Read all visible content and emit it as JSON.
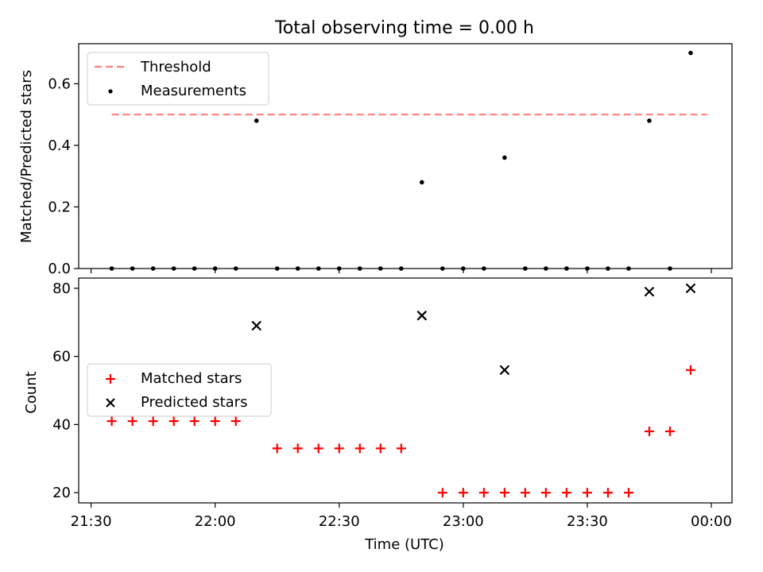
{
  "chart_data": [
    {
      "type": "scatter",
      "title": "Total observing time = 0.00 h",
      "xlabel": "",
      "ylabel": "Matched/Predicted stars",
      "xlim": [
        "21:27",
        "00:05"
      ],
      "ylim": [
        0,
        0.73
      ],
      "yticks": [
        "0.0",
        "0.2",
        "0.4",
        "0.6"
      ],
      "legend": {
        "placement": "top-left",
        "entries": [
          {
            "label": "Threshold",
            "marker": "dashed-line",
            "color": "#ff7f7f"
          },
          {
            "label": "Measurements",
            "marker": "dot",
            "color": "#000000"
          }
        ]
      },
      "threshold": {
        "value": 0.5,
        "x_start": "21:35",
        "x_end": "23:59"
      },
      "series": [
        {
          "name": "Measurements",
          "x": [
            "21:35",
            "21:40",
            "21:45",
            "21:50",
            "21:55",
            "22:00",
            "22:05",
            "22:10",
            "22:15",
            "22:20",
            "22:25",
            "22:30",
            "22:35",
            "22:40",
            "22:45",
            "22:50",
            "22:55",
            "23:00",
            "23:05",
            "23:10",
            "23:15",
            "23:20",
            "23:25",
            "23:30",
            "23:35",
            "23:40",
            "23:45",
            "23:50",
            "23:55"
          ],
          "y": [
            0,
            0,
            0,
            0,
            0,
            0,
            0,
            0.48,
            0,
            0,
            0,
            0,
            0,
            0,
            0,
            0.28,
            0,
            0,
            0,
            0.36,
            0,
            0,
            0,
            0,
            0,
            0,
            0.48,
            0,
            0.7
          ]
        }
      ]
    },
    {
      "type": "scatter",
      "title": "",
      "xlabel": "Time (UTC)",
      "ylabel": "Count",
      "xlim": [
        "21:27",
        "00:05"
      ],
      "ylim": [
        17,
        83
      ],
      "xticks": [
        "21:30",
        "22:00",
        "22:30",
        "23:00",
        "23:30",
        "00:00"
      ],
      "yticks": [
        "20",
        "40",
        "60",
        "80"
      ],
      "legend": {
        "placement": "center-left",
        "entries": [
          {
            "label": "Matched stars",
            "marker": "plus",
            "color": "#ff0000"
          },
          {
            "label": "Predicted stars",
            "marker": "x",
            "color": "#000000"
          }
        ]
      },
      "series": [
        {
          "name": "Matched stars",
          "x": [
            "21:35",
            "21:40",
            "21:45",
            "21:50",
            "21:55",
            "22:00",
            "22:05",
            "22:15",
            "22:20",
            "22:25",
            "22:30",
            "22:35",
            "22:40",
            "22:45",
            "22:55",
            "23:00",
            "23:05",
            "23:10",
            "23:15",
            "23:20",
            "23:25",
            "23:30",
            "23:35",
            "23:40",
            "23:45",
            "23:50",
            "23:55"
          ],
          "y": [
            41,
            41,
            41,
            41,
            41,
            41,
            41,
            33,
            33,
            33,
            33,
            33,
            33,
            33,
            20,
            20,
            20,
            20,
            20,
            20,
            20,
            20,
            20,
            20,
            38,
            38,
            56
          ]
        },
        {
          "name": "Predicted stars",
          "x": [
            "22:10",
            "22:50",
            "23:10",
            "23:45",
            "23:55"
          ],
          "y": [
            69,
            72,
            56,
            79,
            80
          ]
        }
      ]
    }
  ]
}
